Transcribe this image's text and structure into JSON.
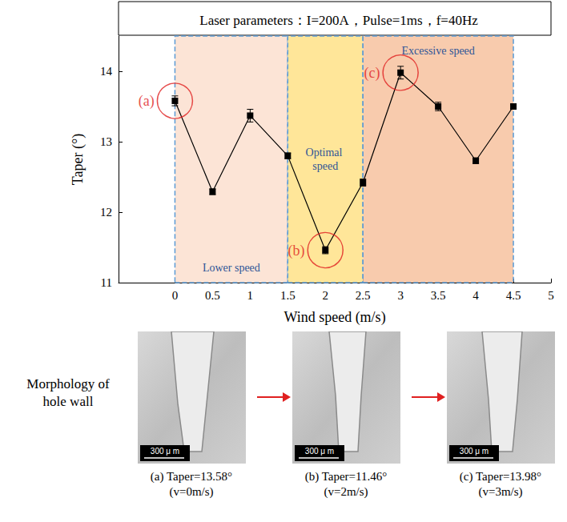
{
  "chart_data": {
    "type": "line",
    "title": "Laser parameters：I=200A，Pulse=1ms，f=40Hz",
    "x_label": "Wind speed (m/s)",
    "y_label": "Taper (°)",
    "x": [
      0,
      0.5,
      1,
      1.5,
      2,
      2.5,
      3,
      3.5,
      4,
      4.5
    ],
    "values": [
      13.58,
      12.29,
      13.37,
      12.8,
      11.46,
      12.42,
      13.98,
      13.5,
      12.73,
      13.5
    ],
    "errors": [
      0.07,
      0.04,
      0.09,
      0.04,
      0.05,
      0.05,
      0.09,
      0.06,
      0.04,
      0.03
    ],
    "color": "#000000",
    "marker": "square",
    "xlim": [
      -0.75,
      5
    ],
    "xticks": [
      0,
      0.5,
      1,
      1.5,
      2,
      2.5,
      3,
      3.5,
      4,
      4.5,
      5
    ],
    "ylim": [
      11,
      14.5
    ],
    "yticks": [
      11,
      12,
      13,
      14
    ],
    "grid": false,
    "regions": [
      {
        "label": "Lower speed",
        "from": 0,
        "to": 1.5,
        "color": "#fce4d6"
      },
      {
        "label": "Optimal speed",
        "from": 1.5,
        "to": 2.5,
        "color": "#ffe699"
      },
      {
        "label": "Excessive speed",
        "from": 2.5,
        "to": 4.5,
        "color": "#f8cbad"
      }
    ],
    "annotations": [
      {
        "label": "(a)",
        "x": 0,
        "y": 13.58,
        "color": "#e02020"
      },
      {
        "label": "(b)",
        "x": 2,
        "y": 11.46,
        "color": "#e02020"
      },
      {
        "label": "(c)",
        "x": 3,
        "y": 13.98,
        "color": "#e02020"
      }
    ]
  },
  "panels": {
    "title": "Morphology of hole wall",
    "items": [
      {
        "label": "(a) Taper=13.58°",
        "condition": "(v=0m/s)",
        "scale_bar": "300 μ m"
      },
      {
        "label": "(b) Taper=11.46°",
        "condition": "(v=2m/s)",
        "scale_bar": "300 μ m"
      },
      {
        "label": "(c) Taper=13.98°",
        "condition": "(v=3m/s)",
        "scale_bar": "300 μ m"
      }
    ]
  }
}
